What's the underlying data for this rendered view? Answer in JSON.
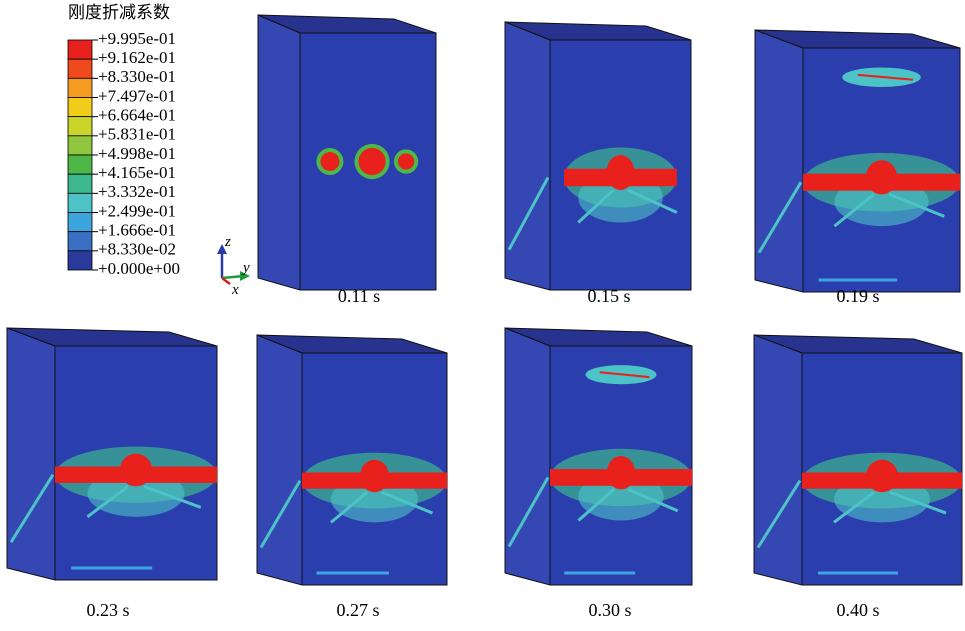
{
  "legend": {
    "title": "刚度折减系数",
    "labels": [
      "+9.995e-01",
      "+9.162e-01",
      "+8.330e-01",
      "+7.497e-01",
      "+6.664e-01",
      "+5.831e-01",
      "+4.998e-01",
      "+4.165e-01",
      "+3.332e-01",
      "+2.499e-01",
      "+1.666e-01",
      "+8.330e-02",
      "+0.000e+00"
    ],
    "colors": [
      "#e8211d",
      "#ef4a1c",
      "#f59b21",
      "#f2cc1a",
      "#c9d52a",
      "#8fc73e",
      "#4db848",
      "#3db78e",
      "#4cc3c6",
      "#3ba6de",
      "#3a70c4",
      "#2a3a9c"
    ]
  },
  "axis_triad": {
    "z": "z",
    "y": "y",
    "x": "x"
  },
  "panels": [
    {
      "caption": "0.11 s"
    },
    {
      "caption": "0.15 s"
    },
    {
      "caption": "0.19 s"
    },
    {
      "caption": "0.23 s"
    },
    {
      "caption": "0.27 s"
    },
    {
      "caption": "0.30 s"
    },
    {
      "caption": "0.40 s"
    }
  ]
}
